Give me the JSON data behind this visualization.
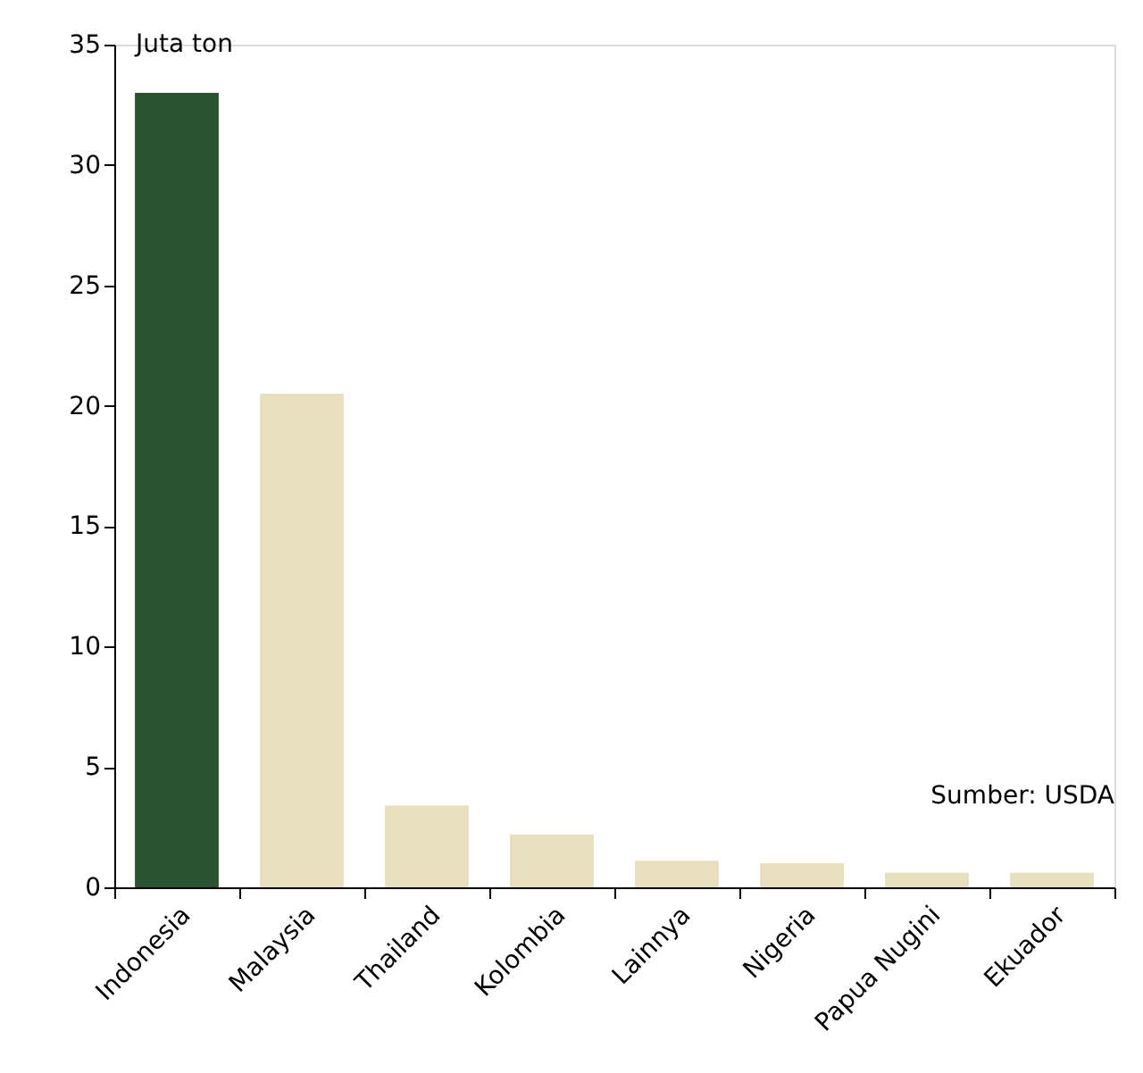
{
  "chart_data": {
    "type": "bar",
    "ylabel": "Juta ton",
    "categories": [
      "Indonesia",
      "Malaysia",
      "Thailand",
      "Kolombia",
      "Lainnya",
      "Nigeria",
      "Papua Nugini",
      "Ekuador"
    ],
    "values": [
      33,
      20.5,
      3.4,
      2.2,
      1.1,
      1.0,
      0.6,
      0.6
    ],
    "colors": [
      "#295331",
      "#e8dfbf",
      "#e8dfbf",
      "#e8dfbf",
      "#e8dfbf",
      "#e8dfbf",
      "#e8dfbf",
      "#e8dfbf"
    ],
    "ylim": [
      0,
      35
    ],
    "yticks": [
      0,
      5,
      10,
      15,
      20,
      25,
      30,
      35
    ],
    "grid": false,
    "annotations": [
      "Sumber: USDA"
    ]
  }
}
